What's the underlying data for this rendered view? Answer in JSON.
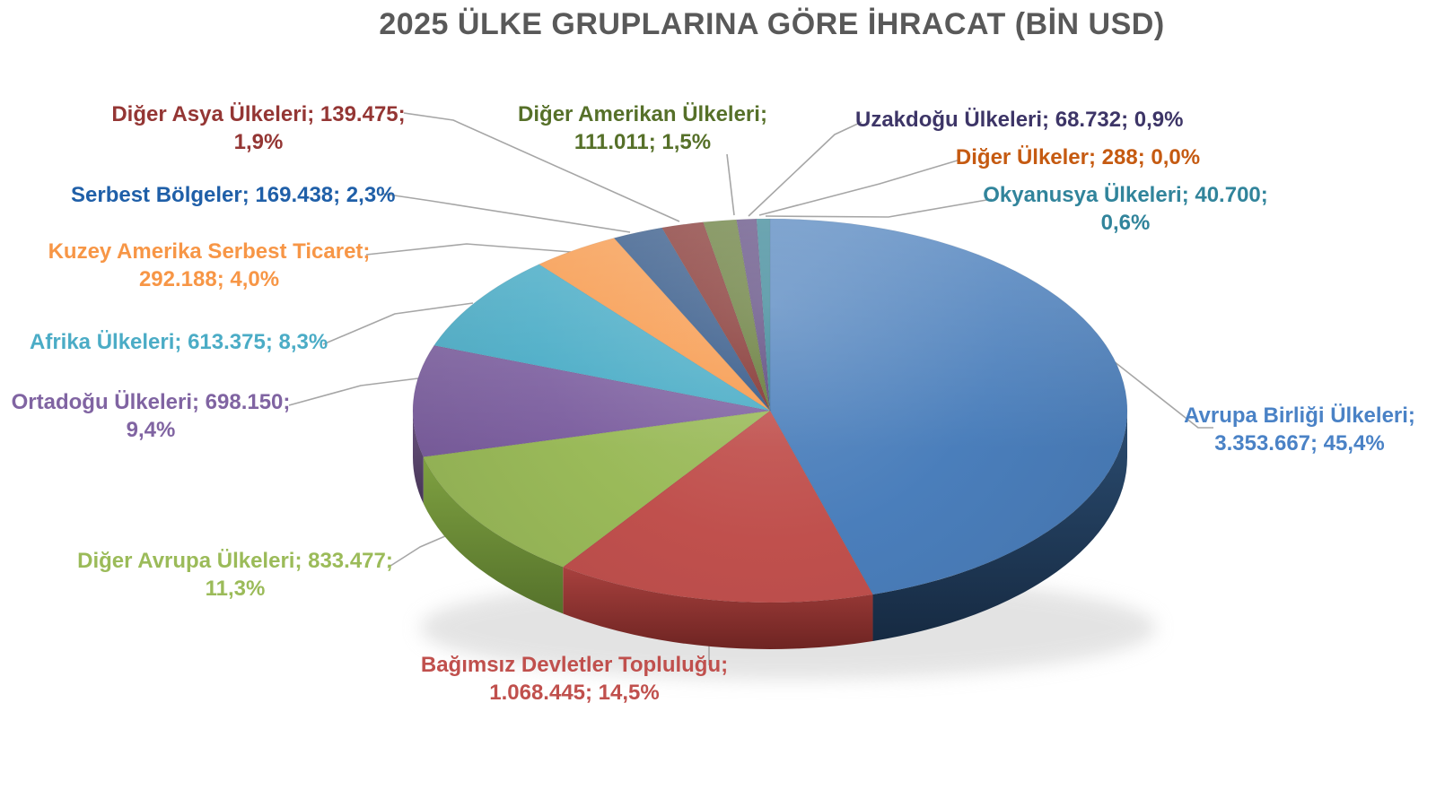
{
  "title": "2025 ÜLKE GRUPLARINA GÖRE İHRACAT (BİN USD)",
  "title_color": "#595959",
  "leader_line_color": "#A6A6A6",
  "background_color": "#FFFFFF",
  "chart_data": {
    "type": "pie",
    "style": "3d",
    "title": "2025 ÜLKE GRUPLARINA GÖRE İHRACAT (BİN USD)",
    "value_unit": "BİN USD",
    "label_format": "category; value; percent",
    "legend_position": "none",
    "start_angle_deg": 0,
    "clockwise": true,
    "slices": [
      {
        "id": "avrupa-birligi",
        "label": "Avrupa Birliği Ülkeleri",
        "value": "3.353.667",
        "percent": "45,4%",
        "pct": 45.4,
        "color": "#4A7EBB",
        "side_top": "#2B4C70",
        "side_bottom": "#162A42",
        "label_color": "#4A82C6",
        "label_lines": [
          "Avrupa Birliği Ülkeleri;",
          "3.353.667; 45,4%"
        ]
      },
      {
        "id": "bagimsiz-devletler",
        "label": "Bağımsız Devletler Topluluğu",
        "value": "1.068.445",
        "percent": "14,5%",
        "pct": 14.5,
        "color": "#C0504D",
        "side_top": "#A8413E",
        "side_bottom": "#6E2422",
        "label_color": "#C0504D",
        "label_lines": [
          "Bağımsız Devletler Topluluğu;",
          "1.068.445; 14,5%"
        ]
      },
      {
        "id": "diger-avrupa",
        "label": "Diğer Avrupa Ülkeleri",
        "value": "833.477",
        "percent": "11,3%",
        "pct": 11.3,
        "color": "#9ABA59",
        "side_top": "#7FA141",
        "side_bottom": "#55722B",
        "label_color": "#9BBB59",
        "label_lines": [
          "Diğer Avrupa Ülkeleri; 833.477;",
          "11,3%"
        ]
      },
      {
        "id": "ortadogu",
        "label": "Ortadoğu Ülkeleri",
        "value": "698.150",
        "percent": "9,4%",
        "pct": 9.4,
        "color": "#7D60A0",
        "side_top": "#6A537F",
        "side_bottom": "#463556",
        "label_color": "#8064A2",
        "label_lines": [
          "Ortadoğu Ülkeleri; 698.150;",
          "9,4%"
        ]
      },
      {
        "id": "afrika",
        "label": "Afrika Ülkeleri",
        "value": "613.375",
        "percent": "8,3%",
        "pct": 8.3,
        "color": "#45AAC5",
        "side_top": "#35818F",
        "side_bottom": "#25606C",
        "label_color": "#4BACC6",
        "label_lines": [
          "Afrika Ülkeleri; 613.375; 8,3%"
        ]
      },
      {
        "id": "kuzey-amerika",
        "label": "Kuzey Amerika Serbest Ticaret",
        "value": "292.188",
        "percent": "4,0%",
        "pct": 4.0,
        "color": "#F79646",
        "side_top": "#C8742F",
        "side_bottom": "#9A5620",
        "label_color": "#F79646",
        "label_lines": [
          "Kuzey Amerika Serbest Ticaret;",
          "292.188; 4,0%"
        ]
      },
      {
        "id": "serbest-bolgeler",
        "label": "Serbest Bölgeler",
        "value": "169.438",
        "percent": "2,3%",
        "pct": 2.3,
        "color": "#2A5082",
        "side_top": "#23436C",
        "side_bottom": "#172C48",
        "label_color": "#1F5FA8",
        "label_lines": [
          "Serbest Bölgeler; 169.438; 2,3%"
        ]
      },
      {
        "id": "diger-asya",
        "label": "Diğer Asya Ülkeleri",
        "value": "139.475",
        "percent": "1,9%",
        "pct": 1.9,
        "color": "#7E2B28",
        "side_top": "#682421",
        "side_bottom": "#451715",
        "label_color": "#943634",
        "label_lines": [
          "Diğer Asya Ülkeleri; 139.475;",
          "1,9%"
        ]
      },
      {
        "id": "diger-amerikan",
        "label": "Diğer Amerikan Ülkeleri",
        "value": "111.011",
        "percent": "1,5%",
        "pct": 1.5,
        "color": "#5E7530",
        "side_top": "#4E6128",
        "side_bottom": "#34411B",
        "label_color": "#567029",
        "label_lines": [
          "Diğer Amerikan Ülkeleri;",
          "111.011; 1,5%"
        ]
      },
      {
        "id": "uzakdogu",
        "label": "Uzakdoğu Ülkeleri",
        "value": "68.732",
        "percent": "0,9%",
        "pct": 0.9,
        "color": "#56427A",
        "side_top": "#473665",
        "side_bottom": "#302444",
        "label_color": "#3D3567",
        "label_lines": [
          "Uzakdoğu Ülkeleri; 68.732; 0,9%"
        ]
      },
      {
        "id": "diger-ulkeler",
        "label": "Diğer Ülkeler",
        "value": "288",
        "percent": "0,0%",
        "pct": 0.0,
        "color": "#B65708",
        "side_top": "#964807",
        "side_bottom": "#643005",
        "label_color": "#C55A11",
        "label_lines": [
          "Diğer Ülkeler; 288; 0,0%"
        ]
      },
      {
        "id": "okyanusya",
        "label": "Okyanusya Ülkeleri",
        "value": "40.700",
        "percent": "0,6%",
        "pct": 0.6,
        "color": "#2E7F90",
        "side_top": "#266A78",
        "side_bottom": "#1A4852",
        "label_color": "#31849B",
        "label_lines": [
          "Okyanusya Ülkeleri; 40.700;",
          "0,6%"
        ]
      }
    ]
  }
}
